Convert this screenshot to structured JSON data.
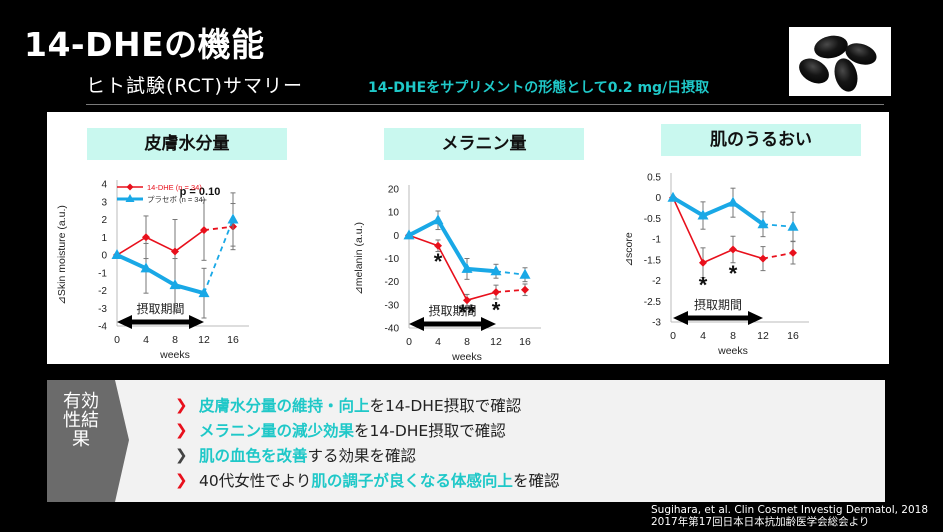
{
  "header": {
    "title": "14-DHEの機能",
    "subtitle": "ヒト試験(RCT)サマリー",
    "intake_note": "14-DHEをサプリメントの形態として0.2 mg/日摂取",
    "image_alt": "black softgel capsules"
  },
  "colors": {
    "accent_cyan": "#1fc8c8",
    "dhe_red": "#e8101c",
    "placebo_blue": "#19a8e6",
    "title_bg": "#c9f8ef"
  },
  "chart_data": [
    {
      "type": "line",
      "title": "皮膚水分量",
      "xlabel": "weeks",
      "ylabel": "⊿Skin moisture (a.u.)",
      "x": [
        0,
        4,
        8,
        12,
        16
      ],
      "xticks": [
        "0",
        "4",
        "8",
        "12",
        "16"
      ],
      "ylim": [
        -4,
        4
      ],
      "yticks": [
        "4",
        "3",
        "2",
        "1",
        "0",
        "-1",
        "-2",
        "-3",
        "-4"
      ],
      "ytick_values": [
        4,
        3,
        2,
        1,
        0,
        -1,
        -2,
        -3,
        -4
      ],
      "legend": "top-left",
      "series": [
        {
          "name": "14-DHE (n = 34)",
          "values": [
            0,
            1.0,
            0.2,
            1.4,
            1.6
          ],
          "err": [
            0,
            1.2,
            1.8,
            1.7,
            1.3
          ]
        },
        {
          "name": "プラセボ (n = 34)",
          "values": [
            0,
            -0.75,
            -1.7,
            -2.15,
            2.0
          ],
          "err": [
            0,
            1.4,
            1.5,
            1.4,
            1.5
          ]
        }
      ],
      "annotations": [
        {
          "text": "p = 0.10",
          "x": 12,
          "y": 3.6
        }
      ],
      "stars": [],
      "period_label": "摂取期間"
    },
    {
      "type": "line",
      "title": "メラニン量",
      "xlabel": "weeks",
      "ylabel": "⊿melanin (a.u.)",
      "x": [
        0,
        4,
        8,
        12,
        16
      ],
      "xticks": [
        "0",
        "4",
        "8",
        "12",
        "16"
      ],
      "ylim": [
        -40,
        20
      ],
      "yticks": [
        "20",
        "10",
        "0",
        "-10",
        "-20",
        "-30",
        "-40"
      ],
      "ytick_values": [
        20,
        10,
        0,
        -10,
        -20,
        -30,
        -40
      ],
      "series": [
        {
          "name": "14-DHE",
          "values": [
            0,
            -4.5,
            -28,
            -24.5,
            -23.5
          ],
          "err": [
            0,
            2.5,
            2.5,
            3,
            2.5
          ]
        },
        {
          "name": "プラセボ",
          "values": [
            0,
            6.5,
            -14.5,
            -15.5,
            -17
          ],
          "err": [
            0,
            4,
            4.5,
            3,
            3
          ]
        }
      ],
      "annotations": [],
      "stars": [
        {
          "text": "*",
          "x": 4,
          "y": -11
        },
        {
          "text": "**",
          "x": 8,
          "y": -33
        },
        {
          "text": "*",
          "x": 12,
          "y": -32
        }
      ],
      "period_label": "摂取期間"
    },
    {
      "type": "line",
      "title": "肌のうるおい",
      "xlabel": "weeks",
      "ylabel": "⊿score",
      "x": [
        0,
        4,
        8,
        12,
        16
      ],
      "xticks": [
        "0",
        "4",
        "8",
        "12",
        "16"
      ],
      "ylim": [
        -3,
        0.5
      ],
      "yticks": [
        "0.5",
        "0",
        "-0.5",
        "-1",
        "-1.5",
        "-2",
        "-2.5",
        "-3"
      ],
      "ytick_values": [
        0.5,
        0,
        -0.5,
        -1,
        -1.5,
        -2,
        -2.5,
        -3
      ],
      "series": [
        {
          "name": "14-DHE",
          "values": [
            0,
            -1.57,
            -1.25,
            -1.47,
            -1.33
          ],
          "err": [
            0,
            0.36,
            0.32,
            0.29,
            0.27
          ]
        },
        {
          "name": "プラセボ",
          "values": [
            0,
            -0.43,
            -0.12,
            -0.64,
            -0.7
          ],
          "err": [
            0,
            0.33,
            0.35,
            0.3,
            0.35
          ]
        }
      ],
      "annotations": [],
      "stars": [
        {
          "text": "*",
          "x": 4,
          "y": -2.1
        },
        {
          "text": "*",
          "x": 8,
          "y": -1.82
        }
      ],
      "period_label": "摂取期間"
    }
  ],
  "results": {
    "tab_label": "有効性結果",
    "bullets": [
      {
        "chevron": "red",
        "parts": [
          {
            "t": "皮膚水分量の維持・向上",
            "hl": true
          },
          {
            "t": "を14-DHE摂取で確認",
            "hl": false
          }
        ]
      },
      {
        "chevron": "red",
        "parts": [
          {
            "t": "メラニン量の減少効果",
            "hl": true
          },
          {
            "t": "を14-DHE摂取で確認",
            "hl": false
          }
        ]
      },
      {
        "chevron": "gray",
        "parts": [
          {
            "t": "肌の血色を改善",
            "hl": true
          },
          {
            "t": "する効果を確認",
            "hl": false
          }
        ]
      },
      {
        "chevron": "red",
        "parts": [
          {
            "t": "40代女性でより",
            "hl": false
          },
          {
            "t": "肌の調子が良くなる体感向上",
            "hl": true
          },
          {
            "t": "を確認",
            "hl": false
          }
        ]
      }
    ],
    "chevron_glyph": "❯"
  },
  "reference": {
    "line1": "Sugihara, et al. Clin Cosmet Investig Dermatol, 2018",
    "line2": "2017年第17回日本日本抗加齢医学会総会より"
  }
}
